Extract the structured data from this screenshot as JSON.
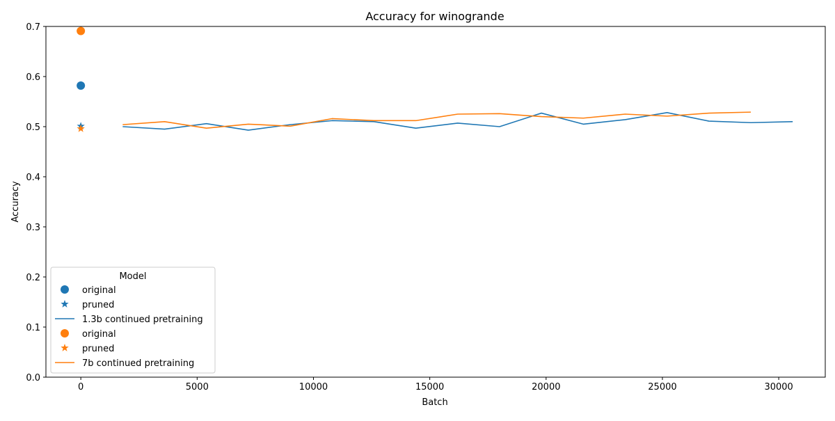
{
  "chart_data": {
    "type": "line",
    "title": "Accuracy for winogrande",
    "xlabel": "Batch",
    "ylabel": "Accuracy",
    "xlim": [
      -1500,
      32000
    ],
    "ylim": [
      0,
      0.7
    ],
    "xticks": [
      0,
      5000,
      10000,
      15000,
      20000,
      25000,
      30000
    ],
    "xtick_labels": [
      "0",
      "5000",
      "10000",
      "15000",
      "20000",
      "25000",
      "30000"
    ],
    "yticks": [
      0.0,
      0.1,
      0.2,
      0.3,
      0.4,
      0.5,
      0.6,
      0.7
    ],
    "ytick_labels": [
      "0.0",
      "0.1",
      "0.2",
      "0.3",
      "0.4",
      "0.5",
      "0.6",
      "0.7"
    ],
    "grid": false,
    "legend": {
      "title": "Model",
      "placement": "lower-left",
      "entries": [
        {
          "label": "original",
          "marker": "circle",
          "color": "#1f77b4"
        },
        {
          "label": "pruned",
          "marker": "star",
          "color": "#1f77b4"
        },
        {
          "label": "1.3b continued pretraining",
          "marker": "line",
          "color": "#1f77b4"
        },
        {
          "label": "original",
          "marker": "circle",
          "color": "#ff7f0e"
        },
        {
          "label": "pruned",
          "marker": "star",
          "color": "#ff7f0e"
        },
        {
          "label": "7b continued pretraining",
          "marker": "line",
          "color": "#ff7f0e"
        }
      ]
    },
    "points": [
      {
        "name": "original",
        "marker": "circle",
        "color": "#1f77b4",
        "x": 0,
        "y": 0.582
      },
      {
        "name": "pruned",
        "marker": "star",
        "color": "#1f77b4",
        "x": 0,
        "y": 0.501
      },
      {
        "name": "original",
        "marker": "circle",
        "color": "#ff7f0e",
        "x": 0,
        "y": 0.691
      },
      {
        "name": "pruned",
        "marker": "star",
        "color": "#ff7f0e",
        "x": 0,
        "y": 0.496
      }
    ],
    "series": [
      {
        "name": "1.3b continued pretraining",
        "color": "#1f77b4",
        "x": [
          1800,
          3600,
          5400,
          7200,
          9000,
          10800,
          12600,
          14400,
          16200,
          18000,
          19800,
          21600,
          23400,
          25200,
          27000,
          28800,
          30600
        ],
        "y": [
          0.5,
          0.495,
          0.506,
          0.493,
          0.504,
          0.512,
          0.51,
          0.497,
          0.507,
          0.5,
          0.527,
          0.505,
          0.514,
          0.528,
          0.511,
          0.508,
          0.51
        ]
      },
      {
        "name": "7b continued pretraining",
        "color": "#ff7f0e",
        "x": [
          1800,
          3600,
          5400,
          7200,
          9000,
          10800,
          12600,
          14400,
          16200,
          18000,
          19800,
          21600,
          23400,
          25200,
          27000,
          28800
        ],
        "y": [
          0.504,
          0.51,
          0.497,
          0.505,
          0.501,
          0.516,
          0.512,
          0.512,
          0.525,
          0.526,
          0.52,
          0.517,
          0.525,
          0.521,
          0.527,
          0.529
        ]
      }
    ]
  }
}
